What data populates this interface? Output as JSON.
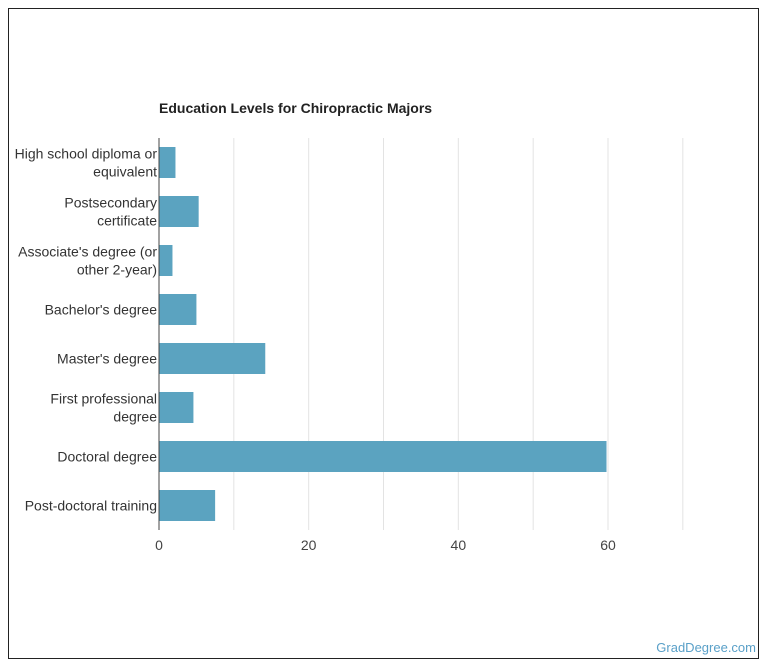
{
  "chart_data": {
    "type": "bar",
    "orientation": "horizontal",
    "title": "Education Levels for Chiropractic Majors",
    "categories": [
      [
        "High school diploma or",
        "equivalent"
      ],
      [
        "Postsecondary",
        "certificate"
      ],
      [
        "Associate's degree (or",
        "other 2-year)"
      ],
      [
        "Bachelor's degree"
      ],
      [
        "Master's degree"
      ],
      [
        "First professional",
        "degree"
      ],
      [
        "Doctoral degree"
      ],
      [
        "Post-doctoral training"
      ]
    ],
    "values": [
      2.2,
      5.3,
      1.8,
      5.0,
      14.2,
      4.6,
      59.8,
      7.5
    ],
    "xlim": [
      0,
      70
    ],
    "xticks": [
      0,
      20,
      40,
      60
    ],
    "grid": true,
    "bar_color": "#5ba3c0"
  },
  "watermark": "GradDegree.com"
}
